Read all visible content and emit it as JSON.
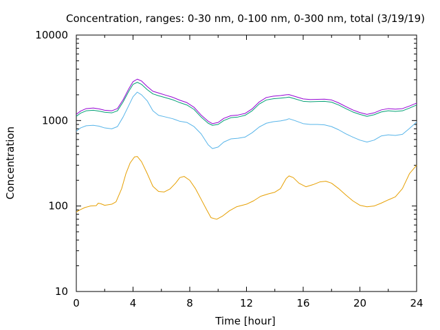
{
  "chart_data": {
    "type": "line",
    "title": "Concentration, ranges: 0-30 nm, 0-100 nm, 0-300 nm, total (3/19/19)",
    "xlabel": "Time [hour]",
    "ylabel": "Concentration",
    "xlim": [
      0,
      24
    ],
    "ylim": [
      10,
      10000
    ],
    "yscale": "log",
    "grid": false,
    "legend": "none",
    "xticks": [
      "0",
      "4",
      "8",
      "12",
      "16",
      "20",
      "24"
    ],
    "yticks": [
      "10",
      "100",
      "1000",
      "10000"
    ],
    "series": [
      {
        "color": "#e69f00",
        "points": [
          [
            0,
            85
          ],
          [
            0.25,
            90
          ],
          [
            0.6,
            96
          ],
          [
            1,
            100
          ],
          [
            1.4,
            101
          ],
          [
            1.55,
            108
          ],
          [
            1.75,
            106
          ],
          [
            2,
            102
          ],
          [
            2.5,
            105
          ],
          [
            2.8,
            112
          ],
          [
            3.2,
            160
          ],
          [
            3.5,
            240
          ],
          [
            3.8,
            320
          ],
          [
            4.1,
            375
          ],
          [
            4.3,
            380
          ],
          [
            4.6,
            330
          ],
          [
            5,
            240
          ],
          [
            5.4,
            170
          ],
          [
            5.8,
            148
          ],
          [
            6.2,
            146
          ],
          [
            6.6,
            158
          ],
          [
            7,
            185
          ],
          [
            7.3,
            215
          ],
          [
            7.6,
            222
          ],
          [
            8,
            200
          ],
          [
            8.4,
            160
          ],
          [
            8.8,
            120
          ],
          [
            9.2,
            90
          ],
          [
            9.5,
            73
          ],
          [
            9.9,
            70
          ],
          [
            10.3,
            76
          ],
          [
            10.8,
            88
          ],
          [
            11.3,
            98
          ],
          [
            12,
            105
          ],
          [
            12.5,
            115
          ],
          [
            13,
            130
          ],
          [
            13.5,
            138
          ],
          [
            14,
            145
          ],
          [
            14.4,
            160
          ],
          [
            14.8,
            210
          ],
          [
            15,
            225
          ],
          [
            15.3,
            215
          ],
          [
            15.7,
            185
          ],
          [
            16.2,
            168
          ],
          [
            16.7,
            178
          ],
          [
            17.2,
            192
          ],
          [
            17.6,
            195
          ],
          [
            18,
            185
          ],
          [
            18.5,
            160
          ],
          [
            19,
            135
          ],
          [
            19.5,
            115
          ],
          [
            20,
            102
          ],
          [
            20.5,
            98
          ],
          [
            21,
            100
          ],
          [
            21.5,
            108
          ],
          [
            22,
            118
          ],
          [
            22.5,
            128
          ],
          [
            23,
            160
          ],
          [
            23.5,
            240
          ],
          [
            24,
            300
          ]
        ]
      },
      {
        "color": "#56b4e9",
        "points": [
          [
            0,
            750
          ],
          [
            0.3,
            820
          ],
          [
            0.7,
            870
          ],
          [
            1.2,
            880
          ],
          [
            1.6,
            860
          ],
          [
            2,
            820
          ],
          [
            2.5,
            800
          ],
          [
            2.9,
            850
          ],
          [
            3.3,
            1100
          ],
          [
            3.7,
            1500
          ],
          [
            4,
            1900
          ],
          [
            4.3,
            2150
          ],
          [
            4.6,
            2000
          ],
          [
            5,
            1700
          ],
          [
            5.4,
            1300
          ],
          [
            5.8,
            1150
          ],
          [
            6.3,
            1100
          ],
          [
            6.8,
            1050
          ],
          [
            7.3,
            980
          ],
          [
            7.8,
            950
          ],
          [
            8.3,
            850
          ],
          [
            8.8,
            700
          ],
          [
            9.3,
            520
          ],
          [
            9.6,
            470
          ],
          [
            10,
            490
          ],
          [
            10.4,
            560
          ],
          [
            10.9,
            610
          ],
          [
            11.4,
            620
          ],
          [
            11.9,
            640
          ],
          [
            12.4,
            720
          ],
          [
            12.9,
            840
          ],
          [
            13.4,
            930
          ],
          [
            13.9,
            970
          ],
          [
            14.4,
            990
          ],
          [
            14.8,
            1020
          ],
          [
            15,
            1050
          ],
          [
            15.4,
            1000
          ],
          [
            16,
            920
          ],
          [
            16.5,
            900
          ],
          [
            17,
            900
          ],
          [
            17.5,
            890
          ],
          [
            18,
            850
          ],
          [
            18.5,
            780
          ],
          [
            19,
            700
          ],
          [
            19.5,
            640
          ],
          [
            20,
            590
          ],
          [
            20.5,
            560
          ],
          [
            21,
            590
          ],
          [
            21.5,
            660
          ],
          [
            22,
            680
          ],
          [
            22.5,
            670
          ],
          [
            23,
            690
          ],
          [
            23.5,
            810
          ],
          [
            24,
            960
          ]
        ]
      },
      {
        "color": "#009e73",
        "points": [
          [
            0,
            1120
          ],
          [
            0.3,
            1220
          ],
          [
            0.7,
            1300
          ],
          [
            1.2,
            1320
          ],
          [
            1.6,
            1290
          ],
          [
            2,
            1250
          ],
          [
            2.5,
            1230
          ],
          [
            2.9,
            1300
          ],
          [
            3.3,
            1650
          ],
          [
            3.7,
            2200
          ],
          [
            4,
            2650
          ],
          [
            4.3,
            2800
          ],
          [
            4.6,
            2650
          ],
          [
            5,
            2300
          ],
          [
            5.4,
            2050
          ],
          [
            5.8,
            1950
          ],
          [
            6.3,
            1850
          ],
          [
            6.8,
            1750
          ],
          [
            7.3,
            1620
          ],
          [
            7.8,
            1520
          ],
          [
            8.3,
            1350
          ],
          [
            8.8,
            1100
          ],
          [
            9.3,
            930
          ],
          [
            9.6,
            880
          ],
          [
            10,
            900
          ],
          [
            10.4,
            1000
          ],
          [
            10.9,
            1080
          ],
          [
            11.4,
            1100
          ],
          [
            11.9,
            1150
          ],
          [
            12.4,
            1300
          ],
          [
            12.9,
            1560
          ],
          [
            13.4,
            1740
          ],
          [
            13.9,
            1800
          ],
          [
            14.4,
            1830
          ],
          [
            14.8,
            1860
          ],
          [
            15,
            1880
          ],
          [
            15.4,
            1800
          ],
          [
            16,
            1680
          ],
          [
            16.5,
            1660
          ],
          [
            17,
            1670
          ],
          [
            17.5,
            1680
          ],
          [
            18,
            1640
          ],
          [
            18.5,
            1520
          ],
          [
            19,
            1380
          ],
          [
            19.5,
            1260
          ],
          [
            20,
            1180
          ],
          [
            20.5,
            1120
          ],
          [
            21,
            1170
          ],
          [
            21.5,
            1260
          ],
          [
            22,
            1300
          ],
          [
            22.5,
            1280
          ],
          [
            23,
            1300
          ],
          [
            23.5,
            1400
          ],
          [
            24,
            1520
          ]
        ]
      },
      {
        "color": "#9400d3",
        "points": [
          [
            0,
            1180
          ],
          [
            0.3,
            1290
          ],
          [
            0.7,
            1380
          ],
          [
            1.2,
            1400
          ],
          [
            1.6,
            1370
          ],
          [
            2,
            1320
          ],
          [
            2.5,
            1300
          ],
          [
            2.9,
            1380
          ],
          [
            3.3,
            1750
          ],
          [
            3.7,
            2350
          ],
          [
            4,
            2850
          ],
          [
            4.3,
            3050
          ],
          [
            4.6,
            2900
          ],
          [
            5,
            2500
          ],
          [
            5.4,
            2200
          ],
          [
            5.8,
            2100
          ],
          [
            6.3,
            1980
          ],
          [
            6.8,
            1870
          ],
          [
            7.3,
            1730
          ],
          [
            7.8,
            1620
          ],
          [
            8.3,
            1430
          ],
          [
            8.8,
            1160
          ],
          [
            9.3,
            980
          ],
          [
            9.6,
            920
          ],
          [
            10,
            950
          ],
          [
            10.4,
            1060
          ],
          [
            10.9,
            1140
          ],
          [
            11.4,
            1160
          ],
          [
            11.9,
            1210
          ],
          [
            12.4,
            1370
          ],
          [
            12.9,
            1650
          ],
          [
            13.4,
            1860
          ],
          [
            13.9,
            1930
          ],
          [
            14.4,
            1960
          ],
          [
            14.8,
            2000
          ],
          [
            15,
            2010
          ],
          [
            15.4,
            1920
          ],
          [
            16,
            1790
          ],
          [
            16.5,
            1760
          ],
          [
            17,
            1770
          ],
          [
            17.5,
            1780
          ],
          [
            18,
            1740
          ],
          [
            18.5,
            1610
          ],
          [
            19,
            1460
          ],
          [
            19.5,
            1330
          ],
          [
            20,
            1240
          ],
          [
            20.5,
            1180
          ],
          [
            21,
            1230
          ],
          [
            21.5,
            1330
          ],
          [
            22,
            1380
          ],
          [
            22.5,
            1360
          ],
          [
            23,
            1380
          ],
          [
            23.5,
            1480
          ],
          [
            24,
            1600
          ]
        ]
      }
    ]
  }
}
